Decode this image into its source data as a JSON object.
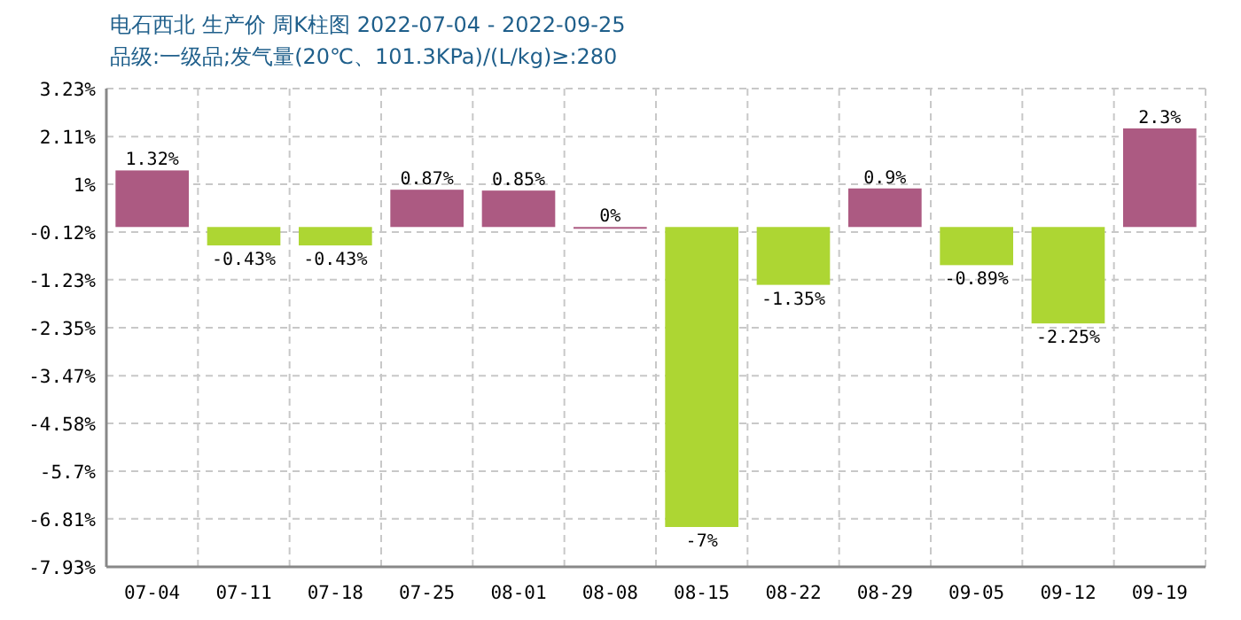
{
  "chart_data": {
    "type": "bar",
    "title": "电石西北 生产价 周K柱图 2022-07-04 - 2022-09-25",
    "subtitle": "品级:一级品;发气量(20℃、101.3KPa)/(L/kg)≥:280",
    "categories": [
      "07-04",
      "07-11",
      "07-18",
      "07-25",
      "08-01",
      "08-08",
      "08-15",
      "08-22",
      "08-29",
      "09-05",
      "09-12",
      "09-19"
    ],
    "values": [
      1.32,
      -0.43,
      -0.43,
      0.87,
      0.85,
      0,
      -7,
      -1.35,
      0.9,
      -0.89,
      -2.25,
      2.3
    ],
    "colors": [
      "#ac5a82",
      "#add633",
      "#add633",
      "#ac5a82",
      "#ac5a82",
      "#ac5a82",
      "#add633",
      "#add633",
      "#ac5a82",
      "#add633",
      "#add633",
      "#ac5a82"
    ],
    "value_labels": [
      "1.32%",
      "-0.43%",
      "-0.43%",
      "0.87%",
      "0.85%",
      "0%",
      "-7%",
      "-1.35%",
      "0.9%",
      "-0.89%",
      "-2.25%",
      "2.3%"
    ],
    "ylim": [
      -7.93,
      3.23
    ],
    "yticks": [
      {
        "value": 3.23,
        "label": "3.23%"
      },
      {
        "value": 2.11,
        "label": "2.11%"
      },
      {
        "value": 1,
        "label": "1%"
      },
      {
        "value": -0.12,
        "label": "-0.12%"
      },
      {
        "value": -1.23,
        "label": "-1.23%"
      },
      {
        "value": -2.35,
        "label": "-2.35%"
      },
      {
        "value": -3.47,
        "label": "-3.47%"
      },
      {
        "value": -4.58,
        "label": "-4.58%"
      },
      {
        "value": -5.7,
        "label": "-5.7%"
      },
      {
        "value": -6.81,
        "label": "-6.81%"
      },
      {
        "value": -7.93,
        "label": "-7.93%"
      }
    ],
    "grid": true
  }
}
